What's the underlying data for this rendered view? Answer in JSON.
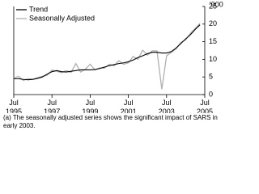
{
  "chart_data": {
    "type": "line",
    "y_unit_label": "'000",
    "footnote": "(a) The seasonally adjusted series shows the significant impact of SARS in early 2003.",
    "x": [
      "1995-07",
      "1995-10",
      "1996-01",
      "1996-04",
      "1996-07",
      "1996-10",
      "1997-01",
      "1997-04",
      "1997-07",
      "1997-10",
      "1998-01",
      "1998-04",
      "1998-07",
      "1998-10",
      "1999-01",
      "1999-04",
      "1999-07",
      "1999-10",
      "2000-01",
      "2000-04",
      "2000-07",
      "2000-10",
      "2001-01",
      "2001-04",
      "2001-07",
      "2001-10",
      "2002-01",
      "2002-04",
      "2002-07",
      "2002-10",
      "2003-01",
      "2003-04",
      "2003-07",
      "2003-10",
      "2004-01",
      "2004-04",
      "2004-07",
      "2004-10",
      "2005-01",
      "2005-04"
    ],
    "series": [
      {
        "name": "Trend",
        "color": "#000000",
        "values": [
          4.5,
          4.5,
          4.3,
          4.2,
          4.3,
          4.6,
          5.0,
          5.8,
          6.5,
          6.8,
          6.5,
          6.4,
          6.6,
          6.8,
          7.0,
          7.0,
          7.0,
          7.1,
          7.4,
          7.8,
          8.2,
          8.5,
          8.8,
          9.0,
          9.3,
          9.8,
          10.5,
          11.0,
          11.6,
          12.0,
          12.0,
          11.8,
          11.8,
          12.2,
          13.2,
          14.5,
          15.8,
          17.0,
          18.5,
          19.8
        ]
      },
      {
        "name": "Seasonally Adjusted",
        "color": "#b0b0b0",
        "values": [
          4.6,
          5.2,
          4.0,
          4.5,
          4.4,
          4.8,
          5.2,
          5.5,
          7.0,
          6.6,
          6.2,
          6.8,
          6.3,
          8.8,
          6.4,
          7.2,
          8.6,
          7.0,
          7.6,
          7.5,
          8.6,
          8.2,
          9.6,
          8.6,
          9.0,
          10.8,
          10.0,
          12.6,
          11.2,
          12.4,
          12.4,
          1.5,
          11.0,
          12.0,
          13.0,
          14.8,
          15.5,
          17.4,
          18.8,
          20.2
        ]
      }
    ],
    "xlim": [
      "1995-07",
      "2005-07"
    ],
    "xticks": [
      {
        "value": "1995-07",
        "label": "Jul 1995"
      },
      {
        "value": "1997-07",
        "label": "Jul 1997"
      },
      {
        "value": "1999-07",
        "label": "Jul 1999"
      },
      {
        "value": "2001-07",
        "label": "Jul 2001"
      },
      {
        "value": "2003-07",
        "label": "Jul 2003"
      },
      {
        "value": "2005-07",
        "label": "Jul 2005"
      }
    ],
    "ylim": [
      0,
      25
    ],
    "yticks": [
      0,
      5,
      10,
      15,
      20,
      25
    ],
    "grid": false,
    "legend": "top-left"
  }
}
